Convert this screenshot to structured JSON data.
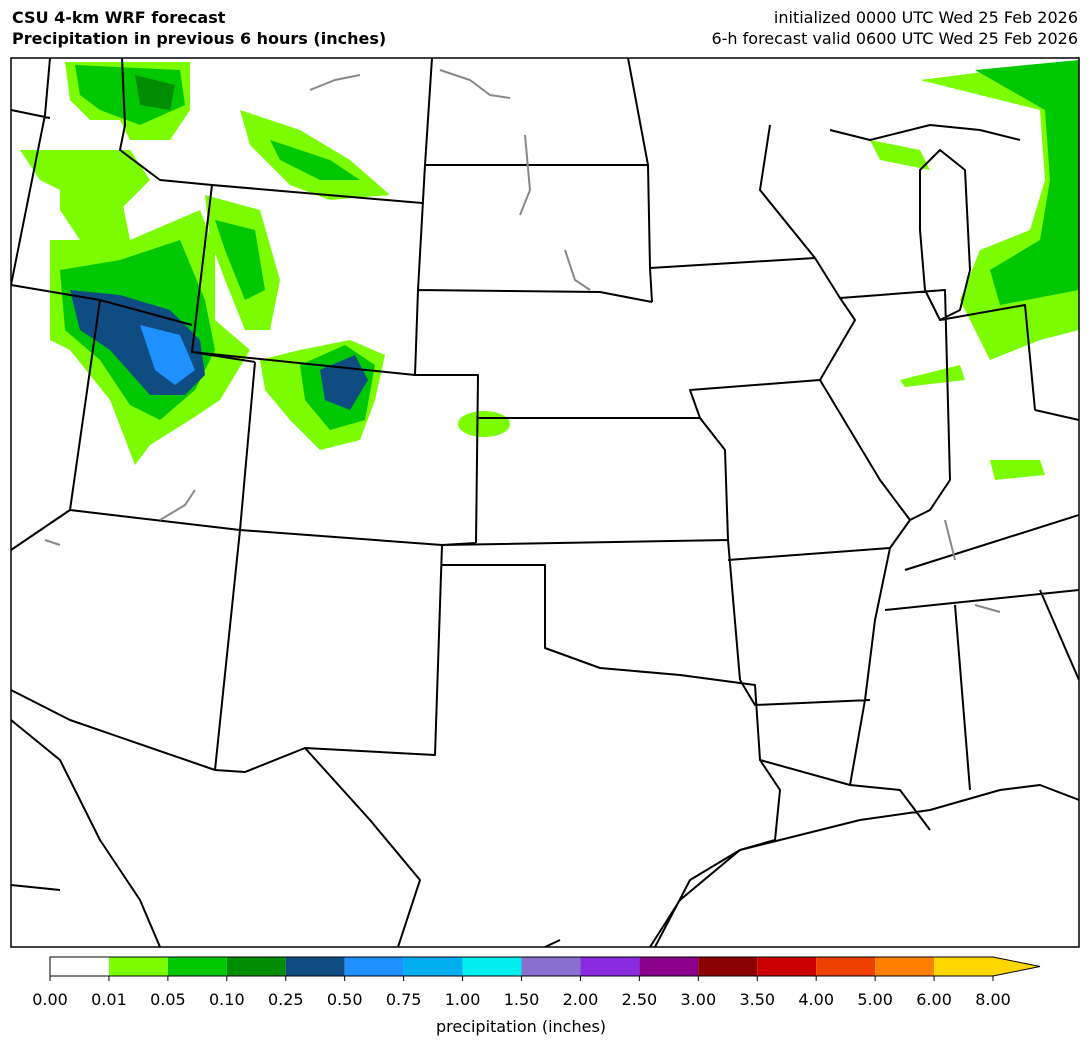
{
  "header": {
    "title": "CSU 4-km WRF forecast",
    "subtitle": "Precipitation in previous 6 hours (inches)",
    "initialized": "initialized 0000 UTC Wed 25 Feb 2026",
    "valid": "6-h forecast valid 0600 UTC Wed 25 Feb 2026"
  },
  "colorbar": {
    "label": "precipitation (inches)",
    "extend": "max",
    "ticks": [
      {
        "value": 0,
        "label": "0.00"
      },
      {
        "value": 0.01,
        "label": "0.01"
      },
      {
        "value": 0.05,
        "label": "0.05"
      },
      {
        "value": 0.1,
        "label": "0.10"
      },
      {
        "value": 0.25,
        "label": "0.25"
      },
      {
        "value": 0.5,
        "label": "0.50"
      },
      {
        "value": 0.75,
        "label": "0.75"
      },
      {
        "value": 1,
        "label": "1.00"
      },
      {
        "value": 1.5,
        "label": "1.50"
      },
      {
        "value": 2,
        "label": "2.00"
      },
      {
        "value": 2.5,
        "label": "2.50"
      },
      {
        "value": 3,
        "label": "3.00"
      },
      {
        "value": 3.5,
        "label": "3.50"
      },
      {
        "value": 4,
        "label": "4.00"
      },
      {
        "value": 5,
        "label": "5.00"
      },
      {
        "value": 6,
        "label": "6.00"
      },
      {
        "value": 8,
        "label": "8.00"
      }
    ],
    "colors": [
      "#ffffff",
      "#7cfc00",
      "#00c800",
      "#008c00",
      "#0f4c81",
      "#1e90ff",
      "#00aeef",
      "#00eeee",
      "#8a6fd0",
      "#8a2be2",
      "#8b008b",
      "#8b0000",
      "#cd0000",
      "#ee4000",
      "#ff7f00",
      "#ffd700",
      "#ffd700"
    ]
  }
}
